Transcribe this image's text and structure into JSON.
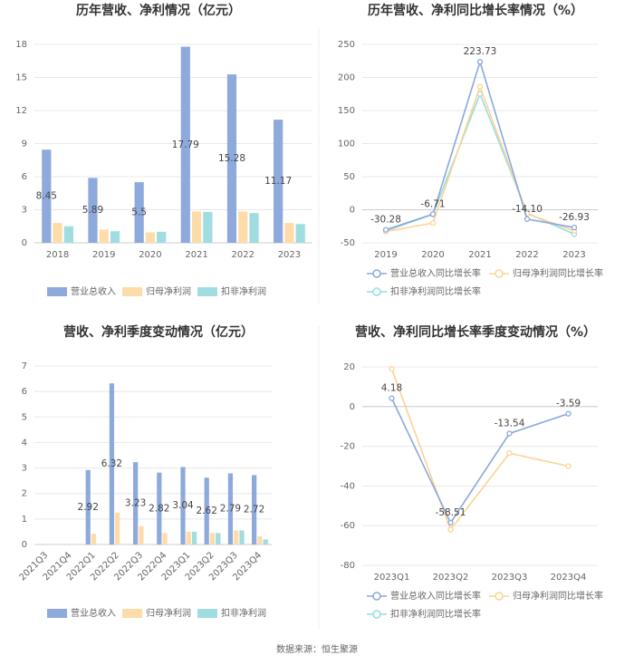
{
  "chart_data": [
    {
      "type": "bar",
      "title": "历年营收、净利情况（亿元）",
      "categories": [
        "2018",
        "2019",
        "2020",
        "2021",
        "2022",
        "2023"
      ],
      "series": [
        {
          "name": "营业总收入",
          "color": "#8eaadc",
          "data_labels": true,
          "values": [
            8.45,
            5.89,
            5.5,
            17.79,
            15.28,
            11.17
          ]
        },
        {
          "name": "归母净利润",
          "color": "#fddcaa",
          "values": [
            1.8,
            1.2,
            0.95,
            2.85,
            2.85,
            1.8
          ]
        },
        {
          "name": "扣非净利润",
          "color": "#9fdde1",
          "values": [
            1.5,
            1.05,
            1.0,
            2.8,
            2.7,
            1.7
          ]
        }
      ],
      "ylim": [
        0,
        18
      ],
      "yticks": [
        0,
        3,
        6,
        9,
        12,
        15,
        18
      ],
      "grid": true
    },
    {
      "type": "line",
      "title": "历年营收、净利同比增长率情况（%）",
      "categories": [
        "2019",
        "2020",
        "2021",
        "2022",
        "2023"
      ],
      "series": [
        {
          "name": "营业总收入同比增长率",
          "color": "#8aa8da",
          "data_labels": true,
          "values": [
            -30.28,
            -6.71,
            223.73,
            -14.1,
            -26.93
          ],
          "value_labels": [
            "-30.28",
            "-6.71",
            "223.73",
            "-14.10",
            "-26.93"
          ]
        },
        {
          "name": "归母净利润同比增长率",
          "color": "#fcd393",
          "values": [
            -33,
            -20,
            186,
            -6,
            -32
          ]
        },
        {
          "name": "扣非净利润同比增长率",
          "color": "#95dde2",
          "values": [
            -32,
            -7,
            175,
            -5,
            -37
          ]
        }
      ],
      "ylim": [
        -50,
        250
      ],
      "yticks": [
        -50,
        0,
        50,
        100,
        150,
        200,
        250
      ],
      "grid": true
    },
    {
      "type": "bar",
      "title": "营收、净利季度变动情况（亿元）",
      "categories": [
        "2021Q3",
        "2021Q4",
        "2022Q1",
        "2022Q2",
        "2022Q3",
        "2022Q4",
        "2023Q1",
        "2023Q2",
        "2023Q3",
        "2023Q4"
      ],
      "series": [
        {
          "name": "营业总收入",
          "color": "#8eaadc",
          "data_labels": true,
          "values": [
            null,
            null,
            2.92,
            6.32,
            3.23,
            2.82,
            3.04,
            2.62,
            2.79,
            2.72
          ]
        },
        {
          "name": "归母净利润",
          "color": "#fddcaa",
          "values": [
            null,
            null,
            0.42,
            1.25,
            0.72,
            0.45,
            0.5,
            0.45,
            0.55,
            0.32
          ]
        },
        {
          "name": "扣非净利润",
          "color": "#9fdde1",
          "values": [
            null,
            null,
            null,
            null,
            null,
            null,
            0.5,
            0.45,
            0.55,
            0.2
          ]
        }
      ],
      "ylim": [
        0,
        7
      ],
      "yticks": [
        0,
        1,
        2,
        3,
        4,
        5,
        6,
        7
      ],
      "grid": true
    },
    {
      "type": "line",
      "title": "营收、净利同比增长率季度变动情况（%）",
      "categories": [
        "2023Q1",
        "2023Q2",
        "2023Q3",
        "2023Q4"
      ],
      "series": [
        {
          "name": "营业总收入同比增长率",
          "color": "#8aa8da",
          "data_labels": true,
          "values": [
            4.18,
            -58.51,
            -13.54,
            -3.59
          ]
        },
        {
          "name": "归母净利润同比增长率",
          "color": "#fcd393",
          "values": [
            19,
            -62,
            -23.5,
            -30
          ]
        },
        {
          "name": "扣非净利润同比增长率",
          "color": "#95dde2",
          "values": [
            null,
            null,
            null,
            null
          ]
        }
      ],
      "ylim": [
        -80,
        20
      ],
      "yticks": [
        -80,
        -60,
        -40,
        -20,
        0,
        20
      ],
      "grid": true
    }
  ],
  "footer": "数据来源：恒生聚源"
}
